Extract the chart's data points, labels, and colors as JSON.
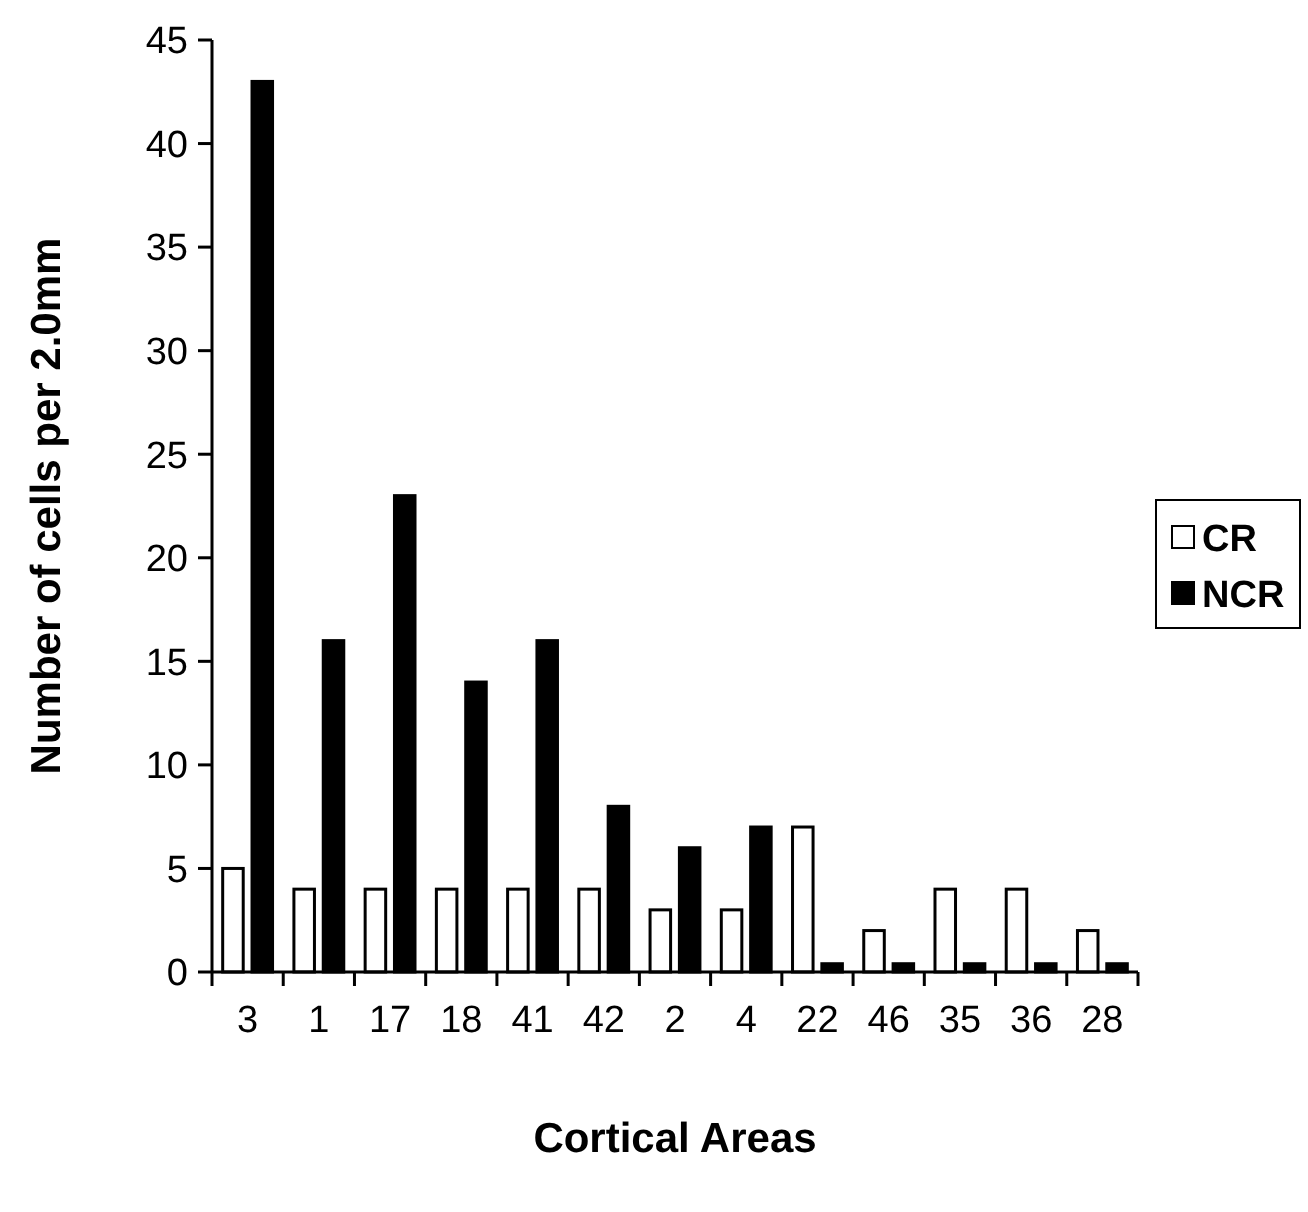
{
  "chart_data": {
    "type": "bar",
    "xlabel": "Cortical Areas",
    "ylabel": "Number of cells per 2.0mm",
    "categories": [
      "3",
      "1",
      "17",
      "18",
      "41",
      "42",
      "2",
      "4",
      "22",
      "46",
      "35",
      "36",
      "28"
    ],
    "series": [
      {
        "name": "CR",
        "color": "#ffffff",
        "values": [
          5,
          4,
          4,
          4,
          4,
          4,
          3,
          3,
          7,
          2,
          4,
          4,
          2
        ]
      },
      {
        "name": "NCR",
        "color": "#000000",
        "values": [
          43,
          16,
          23,
          14,
          16,
          8,
          6,
          7,
          0.4,
          0.4,
          0.4,
          0.4,
          0.4
        ]
      }
    ],
    "ylim": [
      0,
      45
    ],
    "yticks": [
      0,
      5,
      10,
      15,
      20,
      25,
      30,
      35,
      40,
      45
    ],
    "legend": "right",
    "grid": false
  }
}
